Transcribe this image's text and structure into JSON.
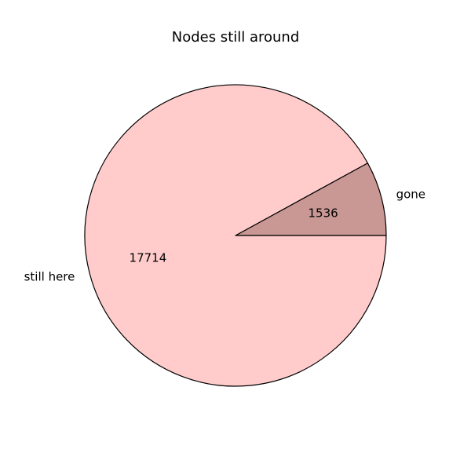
{
  "chart_data": {
    "type": "pie",
    "title": "Nodes still around",
    "slices": [
      {
        "label": "gone",
        "value": 1536,
        "color": "#c99895"
      },
      {
        "label": "still here",
        "value": 17714,
        "color": "#ffcccb"
      }
    ],
    "edge_color": "#000000",
    "start_angle_deg": 0,
    "direction": "counterclockwise"
  }
}
